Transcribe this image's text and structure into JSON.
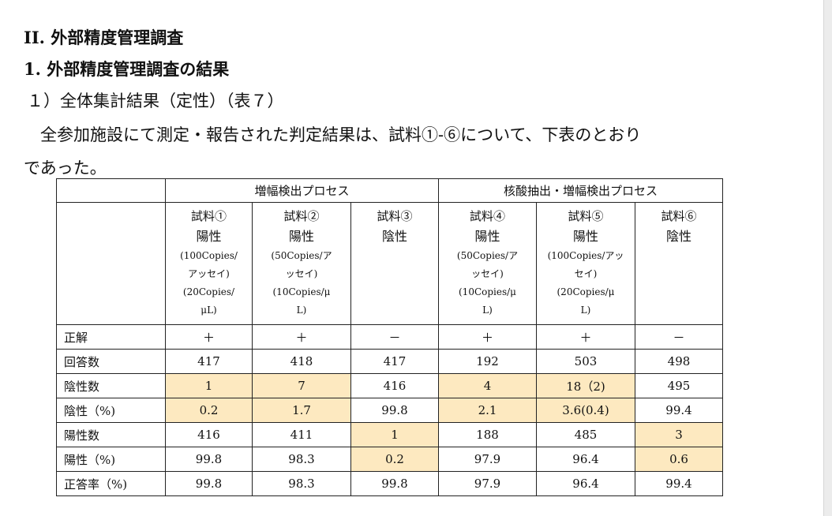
{
  "heading_roman": "II. 外部精度管理調査",
  "heading_section": "1. 外部精度管理調査の結果",
  "heading_sub": "１）全体集計結果（定性）（表７）",
  "paragraph": {
    "line1": "全参加施設にて測定・報告された判定結果は、試料①-⑥について、下表のとおり",
    "line2": "であった。"
  },
  "table": {
    "groups": [
      "増幅検出プロセス",
      "核酸抽出・増幅検出プロセス"
    ],
    "samples": [
      {
        "name": "試料①",
        "polarity": "陽性",
        "notes": [
          "(100Copies/",
          "アッセイ)",
          "(20Copies/",
          "μL)"
        ]
      },
      {
        "name": "試料②",
        "polarity": "陽性",
        "notes": [
          "(50Copies/ア",
          "ッセイ)",
          "(10Copies/μ",
          "L)"
        ]
      },
      {
        "name": "試料③",
        "polarity": "陰性",
        "notes": [
          "",
          "",
          "",
          ""
        ]
      },
      {
        "name": "試料④",
        "polarity": "陽性",
        "notes": [
          "(50Copies/ア",
          "ッセイ)",
          "(10Copies/μ",
          "L)"
        ]
      },
      {
        "name": "試料⑤",
        "polarity": "陽性",
        "notes": [
          "(100Copies/アッ",
          "セイ)",
          "(20Copies/μ",
          "L)"
        ]
      },
      {
        "name": "試料⑥",
        "polarity": "陰性",
        "notes": [
          "",
          "",
          "",
          ""
        ]
      }
    ],
    "rows": [
      {
        "label": "正解",
        "values": [
          "＋",
          "＋",
          "－",
          "＋",
          "＋",
          "－"
        ]
      },
      {
        "label": "回答数",
        "values": [
          "417",
          "418",
          "417",
          "192",
          "503",
          "498"
        ]
      },
      {
        "label": "陰性数",
        "values": [
          "1",
          "7",
          "416",
          "4",
          "18（2)",
          "495"
        ]
      },
      {
        "label": "陰性（%)",
        "values": [
          "0.2",
          "1.7",
          "99.8",
          "2.1",
          "3.6(0.4)",
          "99.4"
        ]
      },
      {
        "label": "陽性数",
        "values": [
          "416",
          "411",
          "1",
          "188",
          "485",
          "3"
        ]
      },
      {
        "label": "陽性（%)",
        "values": [
          "99.8",
          "98.3",
          "0.2",
          "97.9",
          "96.4",
          "0.6"
        ]
      },
      {
        "label": "正答率（%)",
        "values": [
          "99.8",
          "98.3",
          "99.8",
          "97.9",
          "96.4",
          "99.4"
        ]
      }
    ],
    "highlight_color": "#fde9c0"
  }
}
